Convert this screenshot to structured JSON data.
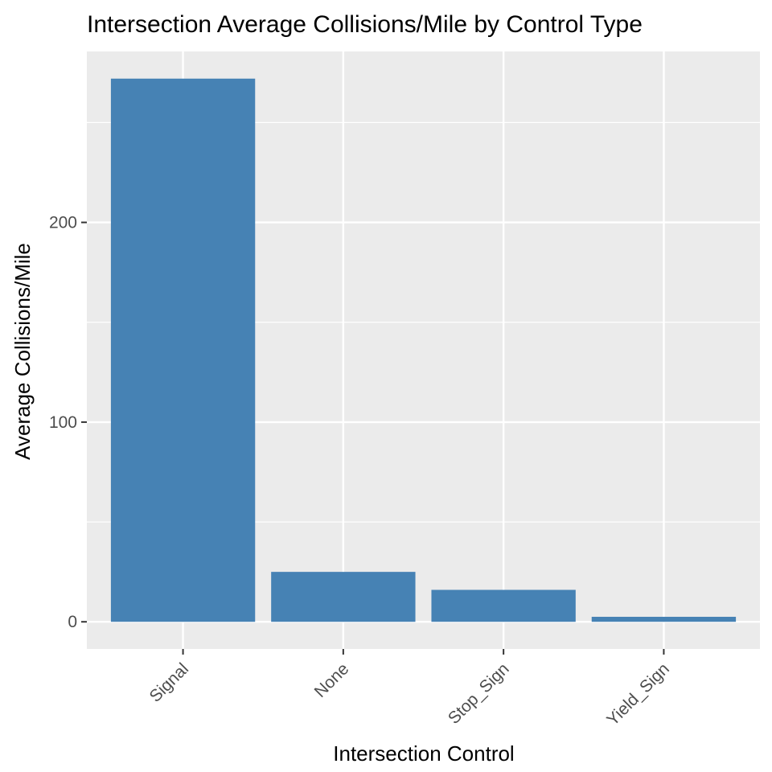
{
  "chart_data": {
    "type": "bar",
    "title": "Intersection Average Collisions/Mile by Control Type",
    "xlabel": "Intersection Control",
    "ylabel": "Average Collisions/Mile",
    "categories": [
      "Signal",
      "None",
      "Stop_Sign",
      "Yield_Sign"
    ],
    "values": [
      272,
      25,
      16,
      2.5
    ],
    "ylim": [
      -13.6,
      285.6
    ],
    "yticks": [
      0,
      100,
      200
    ],
    "ytick_labels": [
      "0",
      "100",
      "200"
    ],
    "grid": true,
    "legend": "none",
    "colors": {
      "bar": "#4682b4",
      "panel": "#ebebeb",
      "grid": "#ffffff",
      "tick_mark": "#333333"
    }
  }
}
